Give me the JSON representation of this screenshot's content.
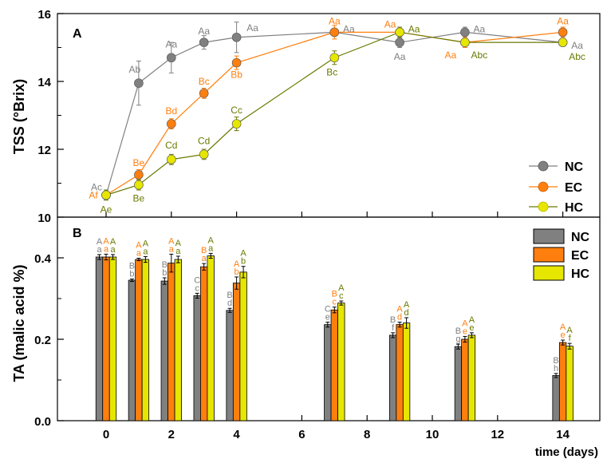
{
  "chart_data": [
    {
      "panel": "A",
      "type": "line",
      "ylabel": "TSS (°Brix)",
      "ylim": [
        10,
        16
      ],
      "yticks": [
        10,
        12,
        14,
        16
      ],
      "x": [
        0,
        1,
        2,
        3,
        4,
        7,
        9,
        11,
        14
      ],
      "series": [
        {
          "name": "NC",
          "color": "#808080",
          "values": [
            10.65,
            13.95,
            14.7,
            15.15,
            15.3,
            15.45,
            15.15,
            15.45,
            15.15
          ],
          "errors": [
            0.1,
            0.65,
            0.45,
            0.2,
            0.45,
            0.1,
            0.15,
            0.15,
            0.1
          ],
          "labels": [
            "Ac",
            "Ab",
            "Aa",
            "Aa",
            "Aa",
            "Aa",
            "Aa",
            "Aa",
            "Aa"
          ]
        },
        {
          "name": "EC",
          "color": "#ff7f0e",
          "values": [
            10.65,
            11.25,
            12.75,
            13.65,
            14.55,
            15.45,
            15.45,
            15.15,
            15.45
          ],
          "errors": [
            0.1,
            0.15,
            0.15,
            0.15,
            0.2,
            0.2,
            0.1,
            0.15,
            0.15
          ],
          "labels": [
            "Af",
            "Be",
            "Bd",
            "Bc",
            "Bb",
            "Aa",
            "Aa",
            "Aa",
            "Aa"
          ]
        },
        {
          "name": "HC",
          "color": "#e6e600",
          "textColor": "#6b7a00",
          "values": [
            10.65,
            10.95,
            11.7,
            11.85,
            12.75,
            14.7,
            15.45,
            15.15,
            15.15
          ],
          "errors": [
            0.15,
            0.15,
            0.15,
            0.15,
            0.2,
            0.2,
            0.15,
            0.1,
            0.1
          ],
          "labels": [
            "Ae",
            "Be",
            "Cd",
            "Cd",
            "Cc",
            "Bc",
            "Aa",
            "Abc",
            "Abc"
          ]
        }
      ]
    },
    {
      "panel": "B",
      "type": "bar",
      "ylabel": "TA (malic acid %)",
      "xlabel": "time (days)",
      "ylim": [
        0,
        0.5
      ],
      "yticks": [
        "0.0",
        "0.2",
        "0.4"
      ],
      "xticks": [
        0,
        2,
        4,
        6,
        8,
        10,
        12,
        14
      ],
      "categories": [
        0,
        1,
        2,
        3,
        4,
        7,
        9,
        11,
        14
      ],
      "series": [
        {
          "name": "NC",
          "color": "#808080",
          "textColor": "#808080",
          "values": [
            0.402,
            0.345,
            0.343,
            0.307,
            0.271,
            0.236,
            0.21,
            0.182,
            0.111
          ],
          "errors": [
            0.006,
            0.003,
            0.008,
            0.006,
            0.005,
            0.006,
            0.006,
            0.006,
            0.005
          ],
          "upper": [
            "A",
            "B",
            "B",
            "C",
            "B",
            "C",
            "B",
            "B",
            "B"
          ],
          "lower": [
            "a",
            "b",
            "b",
            "c",
            "d",
            "e",
            "f",
            "g",
            "h"
          ]
        },
        {
          "name": "EC",
          "color": "#ff7f0e",
          "textColor": "#ff7f0e",
          "values": [
            0.402,
            0.396,
            0.387,
            0.378,
            0.338,
            0.272,
            0.236,
            0.2,
            0.192
          ],
          "errors": [
            0.007,
            0.003,
            0.022,
            0.008,
            0.015,
            0.007,
            0.006,
            0.007,
            0.006
          ],
          "upper": [
            "A",
            "A",
            "A",
            "B",
            "A",
            "B",
            "A",
            "A",
            "A"
          ],
          "lower": [
            "a",
            "a",
            "a",
            "a",
            "b",
            "c",
            "d",
            "e",
            "e"
          ]
        },
        {
          "name": "HC",
          "color": "#e6e600",
          "textColor": "#6b7a00",
          "values": [
            0.402,
            0.396,
            0.396,
            0.405,
            0.365,
            0.289,
            0.24,
            0.21,
            0.183
          ],
          "errors": [
            0.006,
            0.007,
            0.008,
            0.006,
            0.014,
            0.005,
            0.013,
            0.006,
            0.007
          ],
          "upper": [
            "A",
            "A",
            "A",
            "A",
            "A",
            "A",
            "A",
            "A",
            "A"
          ],
          "lower": [
            "a",
            "a",
            "a",
            "a",
            "b",
            "c",
            "d",
            "e",
            "f"
          ]
        }
      ]
    }
  ],
  "legendA": [
    "NC",
    "EC",
    "HC"
  ],
  "legendB": [
    "NC",
    "EC",
    "HC"
  ],
  "panelA_label": "A",
  "panelB_label": "B",
  "ylabelA": "TSS (°Brix)",
  "ylabelB": "TA (malic acid %)",
  "xlabel": "time (days)"
}
